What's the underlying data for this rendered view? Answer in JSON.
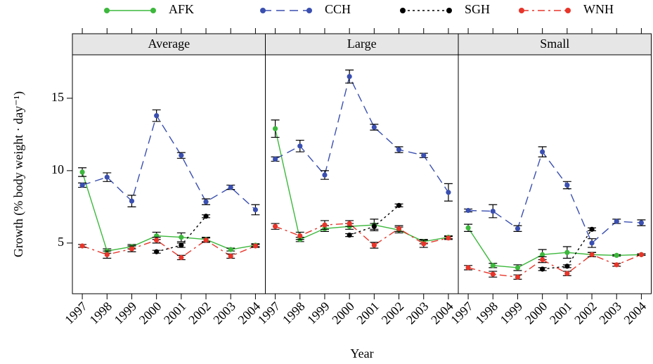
{
  "chart_data": [
    {
      "type": "line",
      "title": "Average",
      "ylabel": "Growth (% body weight · day⁻¹)",
      "xlabel": "Year",
      "x": [
        1997,
        1998,
        1999,
        2000,
        2001,
        2002,
        2003,
        2004
      ],
      "xlim": [
        1996.6,
        2004.4
      ],
      "xticks": [
        1997,
        1998,
        1999,
        2000,
        2001,
        2002,
        2003,
        2004
      ],
      "ylim": [
        1.5,
        18
      ],
      "yticks": [
        5,
        10,
        15
      ],
      "series": [
        {
          "name": "AFK",
          "color": "#3cb83c",
          "dash": "none",
          "values": [
            9.9,
            4.45,
            4.75,
            5.5,
            5.4,
            5.25,
            4.55,
            4.85
          ],
          "errors": [
            0.3,
            0.15,
            0.15,
            0.25,
            0.3,
            0.15,
            0.1,
            0.1
          ]
        },
        {
          "name": "CCH",
          "color": "#3a4fb0",
          "dash": "12,7",
          "values": [
            9.0,
            9.55,
            7.9,
            13.8,
            11.05,
            7.85,
            8.85,
            7.3
          ],
          "errors": [
            0.15,
            0.3,
            0.4,
            0.4,
            0.2,
            0.2,
            0.15,
            0.35
          ]
        },
        {
          "name": "SGH",
          "color": "#000000",
          "dash": "3,4",
          "values": [
            null,
            null,
            null,
            4.4,
            4.85,
            6.85,
            null,
            null
          ],
          "errors": [
            null,
            null,
            null,
            0.1,
            0.15,
            0.1,
            null,
            null
          ]
        },
        {
          "name": "WNH",
          "color": "#e8352a",
          "dash": "10,5,3,5",
          "values": [
            4.8,
            4.2,
            4.6,
            5.2,
            4.0,
            5.2,
            4.1,
            4.8
          ],
          "errors": [
            0.1,
            0.25,
            0.2,
            0.2,
            0.15,
            0.15,
            0.15,
            0.1
          ]
        }
      ]
    },
    {
      "type": "line",
      "title": "Large",
      "x": [
        1997,
        1998,
        1999,
        2000,
        2001,
        2002,
        2003,
        2004
      ],
      "xlim": [
        1996.6,
        2004.4
      ],
      "xticks": [
        1997,
        1998,
        1999,
        2000,
        2001,
        2002,
        2003,
        2004
      ],
      "ylim": [
        1.5,
        18
      ],
      "series": [
        {
          "name": "AFK",
          "color": "#3cb83c",
          "dash": "none",
          "values": [
            12.9,
            5.25,
            6.0,
            6.15,
            6.25,
            5.9,
            5.1,
            5.4
          ],
          "errors": [
            0.6,
            0.15,
            0.2,
            0.2,
            0.4,
            0.2,
            0.15,
            0.1
          ]
        },
        {
          "name": "CCH",
          "color": "#3a4fb0",
          "dash": "12,7",
          "values": [
            10.8,
            11.7,
            9.7,
            16.5,
            13.0,
            11.45,
            11.05,
            8.5
          ],
          "errors": [
            0.15,
            0.4,
            0.3,
            0.45,
            0.2,
            0.2,
            0.15,
            0.6
          ]
        },
        {
          "name": "SGH",
          "color": "#000000",
          "dash": "3,4",
          "values": [
            null,
            null,
            null,
            5.55,
            6.15,
            7.6,
            null,
            null
          ],
          "errors": [
            null,
            null,
            null,
            0.1,
            0.2,
            0.1,
            null,
            null
          ]
        },
        {
          "name": "WNH",
          "color": "#e8352a",
          "dash": "10,5,3,5",
          "values": [
            6.15,
            5.5,
            6.25,
            6.35,
            4.85,
            6.0,
            4.95,
            5.35
          ],
          "errors": [
            0.2,
            0.25,
            0.3,
            0.2,
            0.2,
            0.2,
            0.25,
            0.1
          ]
        }
      ]
    },
    {
      "type": "line",
      "title": "Small",
      "x": [
        1997,
        1998,
        1999,
        2000,
        2001,
        2002,
        2003,
        2004
      ],
      "xlim": [
        1996.6,
        2004.4
      ],
      "xticks": [
        1997,
        1998,
        1999,
        2000,
        2001,
        2002,
        2003,
        2004
      ],
      "ylim": [
        1.5,
        18
      ],
      "series": [
        {
          "name": "AFK",
          "color": "#3cb83c",
          "dash": "none",
          "values": [
            6.05,
            3.45,
            3.3,
            4.2,
            4.35,
            4.2,
            4.15,
            4.2
          ],
          "errors": [
            0.25,
            0.15,
            0.2,
            0.35,
            0.4,
            0.15,
            0.05,
            0.05
          ]
        },
        {
          "name": "CCH",
          "color": "#3a4fb0",
          "dash": "12,7",
          "values": [
            7.25,
            7.2,
            6.0,
            11.3,
            9.0,
            5.0,
            6.5,
            6.4
          ],
          "errors": [
            0.1,
            0.45,
            0.2,
            0.35,
            0.25,
            0.3,
            0.15,
            0.2
          ]
        },
        {
          "name": "SGH",
          "color": "#000000",
          "dash": "3,4",
          "values": [
            null,
            null,
            null,
            3.2,
            3.4,
            5.95,
            null,
            null
          ],
          "errors": [
            null,
            null,
            null,
            0.1,
            0.1,
            0.1,
            null,
            null
          ]
        },
        {
          "name": "WNH",
          "color": "#e8352a",
          "dash": "10,5,3,5",
          "values": [
            3.3,
            2.85,
            2.65,
            3.85,
            2.9,
            4.2,
            3.5,
            4.2
          ],
          "errors": [
            0.15,
            0.2,
            0.15,
            0.2,
            0.15,
            0.15,
            0.1,
            0.05
          ]
        }
      ]
    }
  ]
}
